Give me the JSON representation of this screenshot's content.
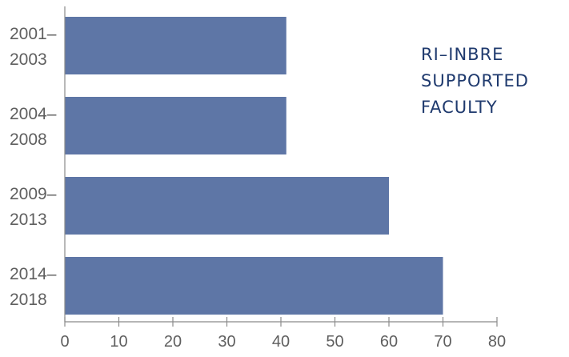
{
  "chart_data": {
    "type": "bar",
    "orientation": "horizontal",
    "title_lines": [
      "RI–INBRE",
      "SUPPORTED",
      "FACULTY"
    ],
    "categories": [
      [
        "2001–",
        "2003"
      ],
      [
        "2004–",
        "2008"
      ],
      [
        "2009–",
        "2013"
      ],
      [
        "2014–",
        "2018"
      ]
    ],
    "values": [
      41,
      41,
      60,
      70
    ],
    "xlim": [
      0,
      80
    ],
    "xticks": [
      "0",
      "10",
      "20",
      "30",
      "40",
      "50",
      "60",
      "70",
      "80"
    ],
    "xlabel": "",
    "ylabel": "",
    "grid": false,
    "bar_color": "#5e76a6",
    "axis_color": "#8a8a8a",
    "title_color": "#1f3a6e"
  }
}
